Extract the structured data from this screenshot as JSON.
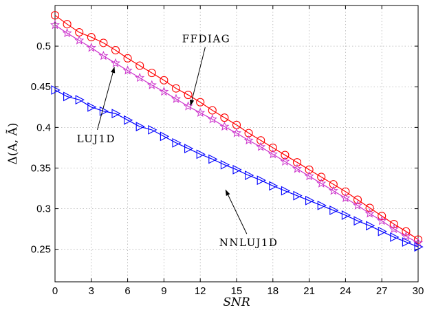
{
  "chart_data": {
    "type": "line",
    "title": "",
    "xlabel": "SNR",
    "ylabel": "Δ(A, Ã)",
    "xlim": [
      0,
      30
    ],
    "ylim": [
      0.21,
      0.55
    ],
    "xticks": [
      0,
      3,
      6,
      9,
      12,
      15,
      18,
      21,
      24,
      27,
      30
    ],
    "yticks": [
      0.25,
      0.3,
      0.35,
      0.4,
      0.45,
      0.5
    ],
    "ytick_labels": [
      "0.25",
      "0.3",
      "0.35",
      "0.4",
      "0.45",
      "0.5"
    ],
    "grid": true,
    "x": [
      0,
      1,
      2,
      3,
      4,
      5,
      6,
      7,
      8,
      9,
      10,
      11,
      12,
      13,
      14,
      15,
      16,
      17,
      18,
      19,
      20,
      21,
      22,
      23,
      24,
      25,
      26,
      27,
      28,
      29,
      30
    ],
    "series": [
      {
        "name": "FFDIAG",
        "color": "#ff0000",
        "marker": "circle",
        "values": [
          0.538,
          0.527,
          0.517,
          0.511,
          0.504,
          0.495,
          0.485,
          0.476,
          0.467,
          0.458,
          0.448,
          0.44,
          0.431,
          0.421,
          0.412,
          0.403,
          0.393,
          0.384,
          0.375,
          0.366,
          0.357,
          0.348,
          0.339,
          0.33,
          0.321,
          0.311,
          0.301,
          0.291,
          0.281,
          0.272,
          0.262
        ]
      },
      {
        "name": "LUJ1D",
        "color": "#cc33cc",
        "marker": "star",
        "values": [
          0.526,
          0.516,
          0.507,
          0.498,
          0.488,
          0.479,
          0.47,
          0.461,
          0.452,
          0.444,
          0.435,
          0.426,
          0.418,
          0.41,
          0.401,
          0.393,
          0.384,
          0.376,
          0.367,
          0.358,
          0.349,
          0.34,
          0.331,
          0.322,
          0.313,
          0.304,
          0.294,
          0.285,
          0.275,
          0.266,
          0.258
        ]
      },
      {
        "name": "NNLUJ1D",
        "color": "#0000ff",
        "marker": "triangle-right",
        "values": [
          0.446,
          0.438,
          0.434,
          0.425,
          0.42,
          0.417,
          0.409,
          0.401,
          0.397,
          0.389,
          0.381,
          0.374,
          0.367,
          0.361,
          0.354,
          0.348,
          0.341,
          0.335,
          0.328,
          0.322,
          0.316,
          0.31,
          0.304,
          0.298,
          0.292,
          0.285,
          0.279,
          0.272,
          0.265,
          0.259,
          0.253
        ]
      }
    ],
    "annotations": [
      {
        "text": "FFDIAG",
        "series": "FFDIAG",
        "text_at": [
          12.5,
          0.509
        ],
        "arrow_to": [
          11.2,
          0.427
        ]
      },
      {
        "text": "LUJ1D",
        "series": "LUJ1D",
        "text_at": [
          3.4,
          0.386
        ],
        "arrow_to": [
          4.9,
          0.474
        ]
      },
      {
        "text": "NNLUJ1D",
        "series": "NNLUJ1D",
        "text_at": [
          16.0,
          0.258
        ],
        "arrow_to": [
          14.1,
          0.323
        ]
      }
    ]
  }
}
